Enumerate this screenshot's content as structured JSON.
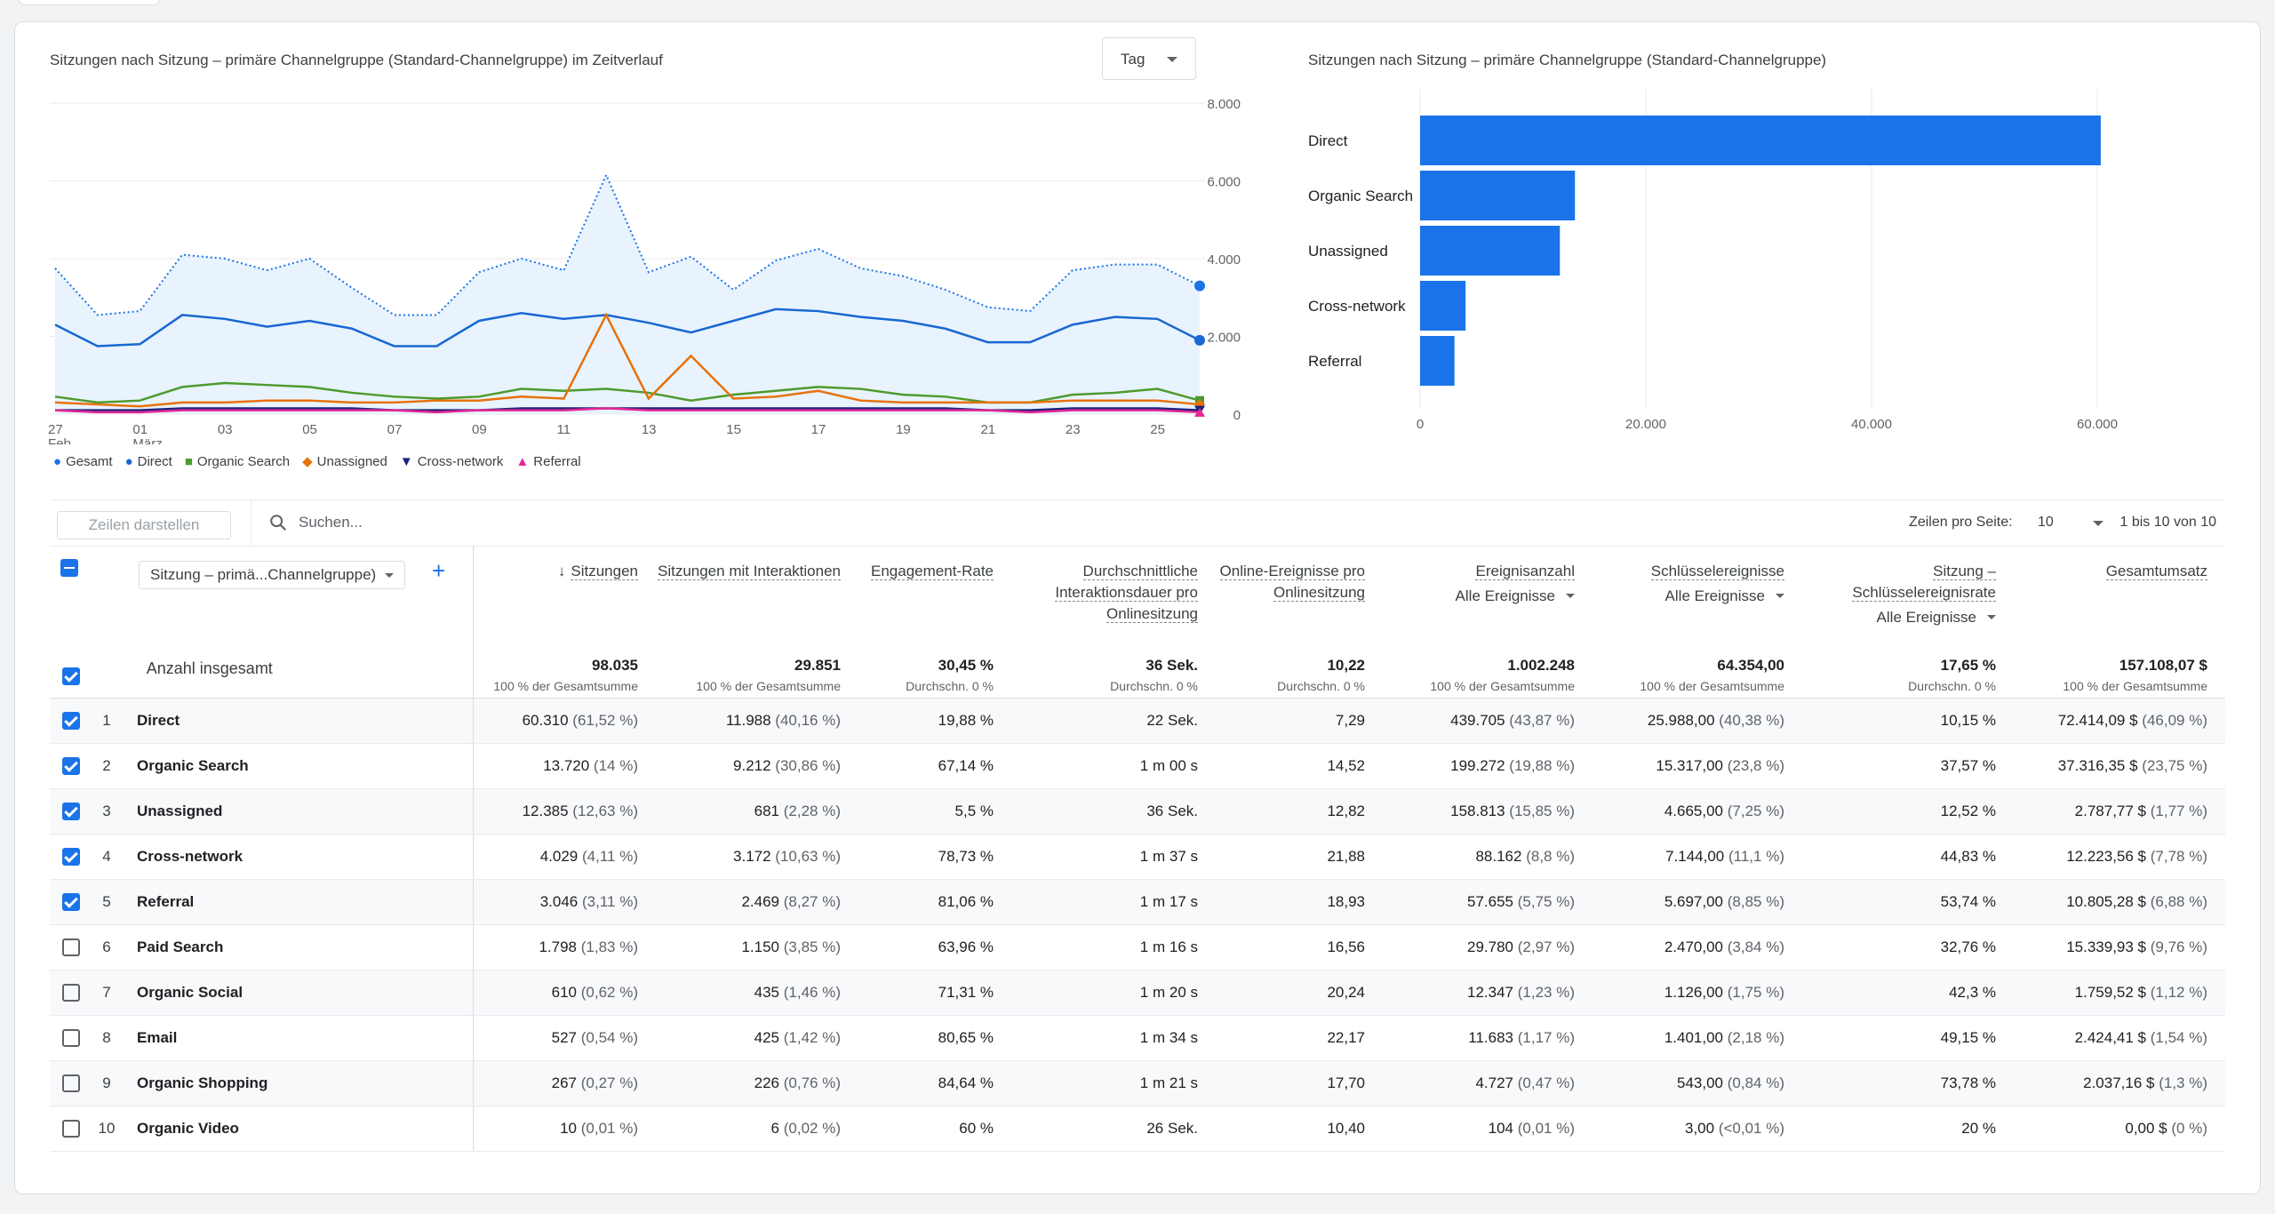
{
  "line_chart": {
    "title": "Sitzungen nach Sitzung – primäre Channelgruppe (Standard-Channelgruppe) im Zeitverlauf",
    "granularity": "Tag",
    "yticks": [
      "8.000",
      "6.000",
      "4.000",
      "2.000",
      "0"
    ],
    "xticks": [
      {
        "day": "27",
        "month": "Feb."
      },
      {
        "day": "01",
        "month": "März"
      },
      {
        "day": "03",
        "month": ""
      },
      {
        "day": "05",
        "month": ""
      },
      {
        "day": "07",
        "month": ""
      },
      {
        "day": "09",
        "month": ""
      },
      {
        "day": "11",
        "month": ""
      },
      {
        "day": "13",
        "month": ""
      },
      {
        "day": "15",
        "month": ""
      },
      {
        "day": "17",
        "month": ""
      },
      {
        "day": "19",
        "month": ""
      },
      {
        "day": "21",
        "month": ""
      },
      {
        "day": "23",
        "month": ""
      },
      {
        "day": "25",
        "month": ""
      }
    ],
    "legend": [
      "Gesamt",
      "Direct",
      "Organic Search",
      "Unassigned",
      "Cross-network",
      "Referral"
    ]
  },
  "bar_chart": {
    "title": "Sitzungen nach Sitzung – primäre Channelgruppe (Standard-Channelgruppe)",
    "xticks": [
      "0",
      "20.000",
      "40.000",
      "60.000"
    ]
  },
  "chart_data": [
    {
      "type": "line",
      "x": [
        "27.02",
        "28.02",
        "01.03",
        "02.03",
        "03.03",
        "04.03",
        "05.03",
        "06.03",
        "07.03",
        "08.03",
        "09.03",
        "10.03",
        "11.03",
        "12.03",
        "13.03",
        "14.03",
        "15.03",
        "16.03",
        "17.03",
        "18.03",
        "19.03",
        "20.03",
        "21.03",
        "22.03",
        "23.03",
        "24.03",
        "25.03",
        "26.03"
      ],
      "ylim": [
        0,
        8000
      ],
      "series": [
        {
          "name": "Gesamt",
          "color": "#1a73e8",
          "values": [
            3750,
            2550,
            2650,
            4100,
            4000,
            3700,
            4000,
            3250,
            2550,
            2550,
            3650,
            4000,
            3700,
            6150,
            3650,
            4050,
            3200,
            3950,
            4250,
            3750,
            3550,
            3200,
            2750,
            2650,
            3700,
            3850,
            3850,
            3300
          ]
        },
        {
          "name": "Direct",
          "color": "#1967d2",
          "values": [
            2300,
            1750,
            1800,
            2550,
            2450,
            2250,
            2400,
            2200,
            1750,
            1750,
            2400,
            2600,
            2450,
            2550,
            2350,
            2100,
            2400,
            2700,
            2650,
            2500,
            2400,
            2200,
            1850,
            1850,
            2300,
            2500,
            2450,
            1900
          ]
        },
        {
          "name": "Organic Search",
          "color": "#4e9a2e",
          "values": [
            450,
            300,
            350,
            700,
            800,
            750,
            700,
            550,
            450,
            400,
            450,
            650,
            600,
            650,
            550,
            350,
            500,
            600,
            700,
            650,
            500,
            450,
            300,
            300,
            500,
            550,
            650,
            350
          ]
        },
        {
          "name": "Unassigned",
          "color": "#e8710a",
          "values": [
            300,
            250,
            200,
            300,
            300,
            350,
            350,
            300,
            300,
            350,
            350,
            450,
            400,
            2550,
            400,
            1500,
            400,
            450,
            600,
            350,
            300,
            300,
            300,
            300,
            350,
            350,
            350,
            250
          ]
        },
        {
          "name": "Cross-network",
          "color": "#1a237e",
          "values": [
            100,
            100,
            100,
            150,
            150,
            150,
            150,
            150,
            100,
            100,
            100,
            150,
            150,
            150,
            150,
            150,
            150,
            150,
            150,
            150,
            150,
            150,
            100,
            100,
            150,
            150,
            150,
            100
          ]
        },
        {
          "name": "Referral",
          "color": "#e52592",
          "values": [
            100,
            50,
            50,
            100,
            100,
            100,
            100,
            100,
            100,
            50,
            100,
            100,
            100,
            150,
            100,
            100,
            100,
            100,
            100,
            100,
            100,
            100,
            100,
            50,
            100,
            100,
            100,
            50
          ]
        }
      ]
    },
    {
      "type": "bar",
      "orientation": "horizontal",
      "categories": [
        "Direct",
        "Organic Search",
        "Unassigned",
        "Cross-network",
        "Referral"
      ],
      "values": [
        60310,
        13720,
        12385,
        4029,
        3046
      ],
      "xlim": [
        0,
        60000
      ],
      "color": "#1a73e8"
    }
  ],
  "toolbar": {
    "rows_button": "Zeilen darstellen",
    "search_placeholder": "Suchen...",
    "rows_per_page_label": "Zeilen pro Seite:",
    "rows_per_page_value": "10",
    "range": "1 bis 10 von 10"
  },
  "table": {
    "dimension_selector": "Sitzung – primä...Channelgruppe)",
    "columns": [
      {
        "label": "Sitzungen",
        "sub": ""
      },
      {
        "label": "Sitzungen mit Interaktionen",
        "sub": ""
      },
      {
        "label": "Engagement-Rate",
        "sub": ""
      },
      {
        "label": "Durchschnittliche Interaktionsdauer pro Onlinesitzung",
        "sub": ""
      },
      {
        "label": "Online-Ereignisse pro Onlinesitzung",
        "sub": ""
      },
      {
        "label": "Ereignisanzahl",
        "sub": "Alle Ereignisse"
      },
      {
        "label": "Schlüsselereignisse",
        "sub": "Alle Ereignisse"
      },
      {
        "label": "Sitzung – Schlüsselereignisrate",
        "sub": "Alle Ereignisse"
      },
      {
        "label": "Gesamtumsatz",
        "sub": ""
      }
    ],
    "totals_label": "Anzahl insgesamt",
    "totals": [
      {
        "value": "98.035",
        "note": "100 % der Gesamtsumme"
      },
      {
        "value": "29.851",
        "note": "100 % der Gesamtsumme"
      },
      {
        "value": "30,45 %",
        "note": "Durchschn. 0 %"
      },
      {
        "value": "36 Sek.",
        "note": "Durchschn. 0 %"
      },
      {
        "value": "10,22",
        "note": "Durchschn. 0 %"
      },
      {
        "value": "1.002.248",
        "note": "100 % der Gesamtsumme"
      },
      {
        "value": "64.354,00",
        "note": "100 % der Gesamtsumme"
      },
      {
        "value": "17,65 %",
        "note": "Durchschn. 0 %"
      },
      {
        "value": "157.108,07 $",
        "note": "100 % der Gesamtsumme"
      }
    ],
    "rows": [
      {
        "n": "1",
        "channel": "Direct",
        "checked": true,
        "cells": [
          [
            "60.310",
            "(61,52 %)"
          ],
          [
            "11.988",
            "(40,16 %)"
          ],
          [
            "19,88 %",
            ""
          ],
          [
            "22 Sek.",
            ""
          ],
          [
            "7,29",
            ""
          ],
          [
            "439.705",
            "(43,87 %)"
          ],
          [
            "25.988,00",
            "(40,38 %)"
          ],
          [
            "10,15 %",
            ""
          ],
          [
            "72.414,09 $",
            "(46,09 %)"
          ]
        ]
      },
      {
        "n": "2",
        "channel": "Organic Search",
        "checked": true,
        "cells": [
          [
            "13.720",
            "(14 %)"
          ],
          [
            "9.212",
            "(30,86 %)"
          ],
          [
            "67,14 %",
            ""
          ],
          [
            "1 m 00 s",
            ""
          ],
          [
            "14,52",
            ""
          ],
          [
            "199.272",
            "(19,88 %)"
          ],
          [
            "15.317,00",
            "(23,8 %)"
          ],
          [
            "37,57 %",
            ""
          ],
          [
            "37.316,35 $",
            "(23,75 %)"
          ]
        ]
      },
      {
        "n": "3",
        "channel": "Unassigned",
        "checked": true,
        "cells": [
          [
            "12.385",
            "(12,63 %)"
          ],
          [
            "681",
            "(2,28 %)"
          ],
          [
            "5,5 %",
            ""
          ],
          [
            "36 Sek.",
            ""
          ],
          [
            "12,82",
            ""
          ],
          [
            "158.813",
            "(15,85 %)"
          ],
          [
            "4.665,00",
            "(7,25 %)"
          ],
          [
            "12,52 %",
            ""
          ],
          [
            "2.787,77 $",
            "(1,77 %)"
          ]
        ]
      },
      {
        "n": "4",
        "channel": "Cross-network",
        "checked": true,
        "cells": [
          [
            "4.029",
            "(4,11 %)"
          ],
          [
            "3.172",
            "(10,63 %)"
          ],
          [
            "78,73 %",
            ""
          ],
          [
            "1 m 37 s",
            ""
          ],
          [
            "21,88",
            ""
          ],
          [
            "88.162",
            "(8,8 %)"
          ],
          [
            "7.144,00",
            "(11,1 %)"
          ],
          [
            "44,83 %",
            ""
          ],
          [
            "12.223,56 $",
            "(7,78 %)"
          ]
        ]
      },
      {
        "n": "5",
        "channel": "Referral",
        "checked": true,
        "cells": [
          [
            "3.046",
            "(3,11 %)"
          ],
          [
            "2.469",
            "(8,27 %)"
          ],
          [
            "81,06 %",
            ""
          ],
          [
            "1 m 17 s",
            ""
          ],
          [
            "18,93",
            ""
          ],
          [
            "57.655",
            "(5,75 %)"
          ],
          [
            "5.697,00",
            "(8,85 %)"
          ],
          [
            "53,74 %",
            ""
          ],
          [
            "10.805,28 $",
            "(6,88 %)"
          ]
        ]
      },
      {
        "n": "6",
        "channel": "Paid Search",
        "checked": false,
        "cells": [
          [
            "1.798",
            "(1,83 %)"
          ],
          [
            "1.150",
            "(3,85 %)"
          ],
          [
            "63,96 %",
            ""
          ],
          [
            "1 m 16 s",
            ""
          ],
          [
            "16,56",
            ""
          ],
          [
            "29.780",
            "(2,97 %)"
          ],
          [
            "2.470,00",
            "(3,84 %)"
          ],
          [
            "32,76 %",
            ""
          ],
          [
            "15.339,93 $",
            "(9,76 %)"
          ]
        ]
      },
      {
        "n": "7",
        "channel": "Organic Social",
        "checked": false,
        "cells": [
          [
            "610",
            "(0,62 %)"
          ],
          [
            "435",
            "(1,46 %)"
          ],
          [
            "71,31 %",
            ""
          ],
          [
            "1 m 20 s",
            ""
          ],
          [
            "20,24",
            ""
          ],
          [
            "12.347",
            "(1,23 %)"
          ],
          [
            "1.126,00",
            "(1,75 %)"
          ],
          [
            "42,3 %",
            ""
          ],
          [
            "1.759,52 $",
            "(1,12 %)"
          ]
        ]
      },
      {
        "n": "8",
        "channel": "Email",
        "checked": false,
        "cells": [
          [
            "527",
            "(0,54 %)"
          ],
          [
            "425",
            "(1,42 %)"
          ],
          [
            "80,65 %",
            ""
          ],
          [
            "1 m 34 s",
            ""
          ],
          [
            "22,17",
            ""
          ],
          [
            "11.683",
            "(1,17 %)"
          ],
          [
            "1.401,00",
            "(2,18 %)"
          ],
          [
            "49,15 %",
            ""
          ],
          [
            "2.424,41 $",
            "(1,54 %)"
          ]
        ]
      },
      {
        "n": "9",
        "channel": "Organic Shopping",
        "checked": false,
        "cells": [
          [
            "267",
            "(0,27 %)"
          ],
          [
            "226",
            "(0,76 %)"
          ],
          [
            "84,64 %",
            ""
          ],
          [
            "1 m 21 s",
            ""
          ],
          [
            "17,70",
            ""
          ],
          [
            "4.727",
            "(0,47 %)"
          ],
          [
            "543,00",
            "(0,84 %)"
          ],
          [
            "73,78 %",
            ""
          ],
          [
            "2.037,16 $",
            "(1,3 %)"
          ]
        ]
      },
      {
        "n": "10",
        "channel": "Organic Video",
        "checked": false,
        "cells": [
          [
            "10",
            "(0,01 %)"
          ],
          [
            "6",
            "(0,02 %)"
          ],
          [
            "60 %",
            ""
          ],
          [
            "26 Sek.",
            ""
          ],
          [
            "10,40",
            ""
          ],
          [
            "104",
            "(0,01 %)"
          ],
          [
            "3,00",
            "(<0,01 %)"
          ],
          [
            "20 %",
            ""
          ],
          [
            "0,00 $",
            "(0 %)"
          ]
        ]
      }
    ]
  }
}
